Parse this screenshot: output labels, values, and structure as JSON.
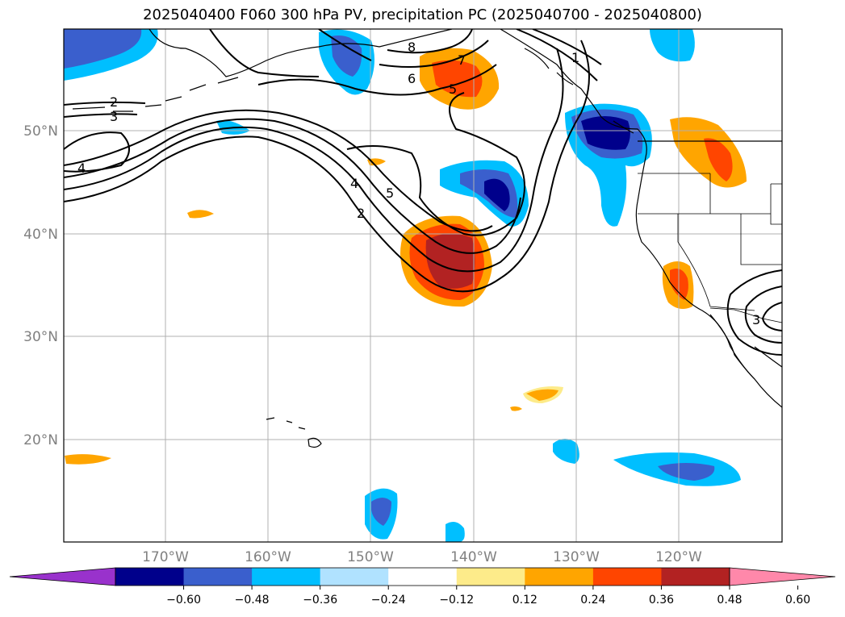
{
  "title": "2025040400 F060 300 hPa PV, precipitation PC (2025040700 - 2025040800)",
  "lat_labels": [
    "50°N",
    "40°N",
    "30°N",
    "20°N"
  ],
  "lon_labels": [
    "170°W",
    "160°W",
    "150°W",
    "140°W",
    "130°W",
    "120°W"
  ],
  "contour_labels": [
    "8",
    "7",
    "6",
    "5",
    "2",
    "3",
    "4",
    "4",
    "5",
    "2",
    "1",
    "3"
  ],
  "colorbar": {
    "ticks": [
      "−0.60",
      "−0.48",
      "−0.36",
      "−0.24",
      "−0.12",
      "0.12",
      "0.24",
      "0.36",
      "0.48",
      "0.60"
    ],
    "colors": [
      "#9932cc",
      "#00008b",
      "#3a5fcd",
      "#00bfff",
      "#b0e2ff",
      "#ffffff",
      "#fdeb8a",
      "#ffa500",
      "#ff4500",
      "#b22222",
      "#ff88aa"
    ]
  }
}
